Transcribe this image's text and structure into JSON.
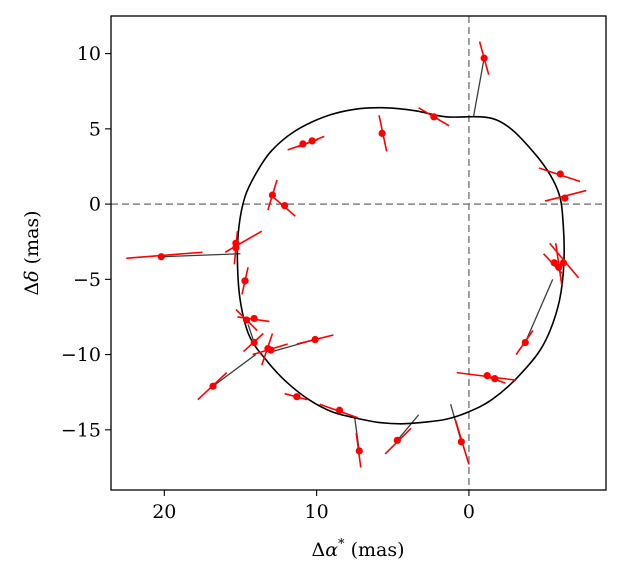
{
  "chart_data": {
    "type": "scatter",
    "title": "",
    "xlabel": "Δα* (mas)",
    "ylabel": "Δδ (mas)",
    "xlabel_parts": {
      "delta": "Δ",
      "symbol": "α",
      "sup": "*",
      "unit": " (mas)"
    },
    "ylabel_parts": {
      "delta": "Δ",
      "symbol": "δ",
      "unit": " (mas)"
    },
    "x_inverted": true,
    "xlim": [
      23.5,
      -9.0
    ],
    "ylim": [
      -19.0,
      12.5
    ],
    "xticks": [
      20,
      10,
      0
    ],
    "xtick_labels": [
      "20",
      "10",
      "0"
    ],
    "yticks": [
      10,
      5,
      0,
      -5,
      -10,
      -15
    ],
    "ytick_labels": [
      "10",
      "5",
      "0",
      "−5",
      "−10",
      "−15"
    ],
    "reference_lines": {
      "x": 0,
      "y": 0,
      "style": "dashed",
      "color": "#808080"
    },
    "colors": {
      "points": "#ff0000",
      "orbit": "#000000",
      "connector": "#3c3c3c",
      "reference": "#808080"
    },
    "orbit": {
      "description": "model astrometric orbit (closed curve)",
      "x": [
        -1.8,
        -4.2,
        -5.8,
        -6.2,
        -6.2,
        -5.8,
        -4.8,
        -3.2,
        -1.5,
        0.0,
        1.5,
        3.0,
        4.5,
        6.0,
        7.5,
        9.0,
        10.5,
        12.0,
        13.2,
        14.4,
        15.0,
        15.2,
        15.1,
        14.7,
        14.0,
        13.0,
        11.5,
        9.5,
        7.5,
        5.5,
        3.5,
        1.5
      ],
      "y": [
        5.6,
        3.5,
        1.0,
        -1.5,
        -4.5,
        -7.0,
        -9.5,
        -11.5,
        -13.0,
        -13.8,
        -14.3,
        -14.5,
        -14.6,
        -14.5,
        -14.2,
        -13.8,
        -13.0,
        -11.8,
        -10.5,
        -8.8,
        -6.5,
        -3.8,
        -1.5,
        0.5,
        2.0,
        3.5,
        4.8,
        5.8,
        6.3,
        6.4,
        6.2,
        5.8
      ]
    },
    "points": [
      {
        "x": -1.0,
        "y": 9.7,
        "err": [
          [
            -0.7,
            10.8
          ],
          [
            -1.3,
            8.6
          ]
        ],
        "model": [
          -0.3,
          5.8
        ]
      },
      {
        "x": 2.3,
        "y": 5.8,
        "err": [
          [
            3.3,
            6.4
          ],
          [
            1.3,
            5.2
          ]
        ],
        "model": [
          2.3,
          5.8
        ]
      },
      {
        "x": 5.7,
        "y": 4.7,
        "err": [
          [
            5.9,
            5.9
          ],
          [
            5.4,
            3.5
          ]
        ],
        "model": [
          5.7,
          4.7
        ]
      },
      {
        "x": 10.3,
        "y": 4.2,
        "err": [
          [
            11.2,
            3.8
          ],
          [
            9.5,
            4.5
          ]
        ],
        "model": [
          10.3,
          4.2
        ]
      },
      {
        "x": 10.9,
        "y": 4.0,
        "err": [
          [
            11.9,
            3.6
          ],
          [
            9.9,
            4.3
          ]
        ],
        "model": [
          10.9,
          4.0
        ]
      },
      {
        "x": 12.9,
        "y": 0.6,
        "err": [
          [
            12.6,
            1.6
          ],
          [
            13.2,
            -0.4
          ]
        ],
        "model": [
          12.9,
          0.6
        ]
      },
      {
        "x": 12.1,
        "y": -0.1,
        "err": [
          [
            13.0,
            0.6
          ],
          [
            11.4,
            -0.8
          ]
        ],
        "model": [
          12.1,
          -0.1
        ]
      },
      {
        "x": 20.2,
        "y": -3.5,
        "err": [
          [
            22.5,
            -3.6
          ],
          [
            17.5,
            -3.2
          ]
        ],
        "model": [
          15.0,
          -3.3
        ]
      },
      {
        "x": 15.3,
        "y": -2.6,
        "err": [
          [
            16.0,
            -3.2
          ],
          [
            13.6,
            -1.8
          ]
        ],
        "model": [
          15.3,
          -2.6
        ]
      },
      {
        "x": 15.3,
        "y": -2.9,
        "err": [
          [
            15.2,
            -1.8
          ],
          [
            15.4,
            -4.0
          ]
        ],
        "model": [
          15.3,
          -2.9
        ]
      },
      {
        "x": 14.7,
        "y": -5.1,
        "err": [
          [
            14.9,
            -6.0
          ],
          [
            14.5,
            -4.2
          ]
        ],
        "model": [
          14.7,
          -5.1
        ]
      },
      {
        "x": 14.6,
        "y": -7.7,
        "err": [
          [
            15.3,
            -7.0
          ],
          [
            13.9,
            -8.4
          ]
        ],
        "model": [
          14.6,
          -7.7
        ]
      },
      {
        "x": 14.1,
        "y": -7.6,
        "err": [
          [
            15.2,
            -7.5
          ],
          [
            13.1,
            -7.8
          ]
        ],
        "model": [
          14.1,
          -7.6
        ]
      },
      {
        "x": 14.1,
        "y": -9.2,
        "err": [
          [
            14.8,
            -9.8
          ],
          [
            13.5,
            -8.6
          ]
        ],
        "model": [
          14.5,
          -8.0
        ]
      },
      {
        "x": 13.2,
        "y": -9.6,
        "err": [
          [
            13.6,
            -10.7
          ],
          [
            12.9,
            -8.6
          ]
        ],
        "model": [
          13.2,
          -9.6
        ]
      },
      {
        "x": 13.0,
        "y": -9.7,
        "err": [
          [
            14.2,
            -10.0
          ],
          [
            11.9,
            -9.3
          ]
        ],
        "model": [
          13.0,
          -9.7
        ]
      },
      {
        "x": 10.1,
        "y": -9.0,
        "err": [
          [
            11.3,
            -9.3
          ],
          [
            8.9,
            -8.7
          ]
        ],
        "model": [
          12.9,
          -9.8
        ]
      },
      {
        "x": 16.8,
        "y": -12.1,
        "err": [
          [
            17.8,
            -13.0
          ],
          [
            15.9,
            -11.2
          ]
        ],
        "model": [
          14.0,
          -10.0
        ]
      },
      {
        "x": 11.3,
        "y": -12.8,
        "err": [
          [
            12.1,
            -12.6
          ],
          [
            10.6,
            -13.0
          ]
        ],
        "model": [
          11.3,
          -12.8
        ]
      },
      {
        "x": 8.5,
        "y": -13.7,
        "err": [
          [
            9.8,
            -13.3
          ],
          [
            7.3,
            -14.2
          ]
        ],
        "model": [
          8.5,
          -13.7
        ]
      },
      {
        "x": 7.2,
        "y": -16.4,
        "err": [
          [
            7.1,
            -17.5
          ],
          [
            7.4,
            -15.2
          ]
        ],
        "model": [
          7.5,
          -14.2
        ]
      },
      {
        "x": 4.7,
        "y": -15.7,
        "err": [
          [
            5.5,
            -16.6
          ],
          [
            3.8,
            -14.9
          ]
        ],
        "model": [
          3.3,
          -14.0
        ]
      },
      {
        "x": 0.5,
        "y": -15.8,
        "err": [
          [
            0.0,
            -17.3
          ],
          [
            0.9,
            -14.3
          ]
        ],
        "model": [
          1.2,
          -13.3
        ]
      },
      {
        "x": -1.2,
        "y": -11.4,
        "err": [
          [
            0.8,
            -11.2
          ],
          [
            -3.1,
            -11.7
          ]
        ],
        "model": [
          -1.2,
          -11.4
        ]
      },
      {
        "x": -1.7,
        "y": -11.6,
        "err": [
          [
            -1.0,
            -11.4
          ],
          [
            -2.4,
            -11.9
          ]
        ],
        "model": [
          -1.7,
          -11.6
        ]
      },
      {
        "x": -3.7,
        "y": -9.2,
        "err": [
          [
            -3.1,
            -10.0
          ],
          [
            -4.2,
            -8.4
          ]
        ],
        "model": [
          -5.5,
          -5.0
        ]
      },
      {
        "x": -5.6,
        "y": -3.9,
        "err": [
          [
            -4.9,
            -3.3
          ],
          [
            -6.1,
            -4.6
          ]
        ],
        "model": [
          -5.6,
          -3.9
        ]
      },
      {
        "x": -5.9,
        "y": -4.2,
        "err": [
          [
            -5.7,
            -2.6
          ],
          [
            -6.1,
            -5.4
          ]
        ],
        "model": [
          -5.9,
          -4.2
        ]
      },
      {
        "x": -6.2,
        "y": -3.9,
        "err": [
          [
            -5.3,
            -2.6
          ],
          [
            -7.2,
            -4.9
          ]
        ],
        "model": [
          -6.2,
          -3.9
        ]
      },
      {
        "x": -6.0,
        "y": 2.0,
        "err": [
          [
            -4.6,
            2.4
          ],
          [
            -7.3,
            1.5
          ]
        ],
        "model": [
          -6.0,
          2.0
        ]
      },
      {
        "x": -6.3,
        "y": 0.4,
        "err": [
          [
            -5.0,
            0.2
          ],
          [
            -7.7,
            0.9
          ]
        ],
        "model": [
          -6.3,
          0.4
        ]
      }
    ]
  }
}
